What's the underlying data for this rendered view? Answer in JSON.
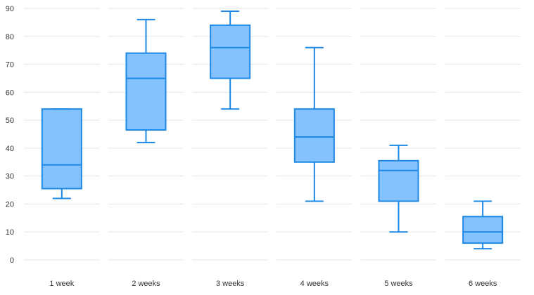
{
  "chart_data": {
    "type": "boxplot",
    "title": "",
    "xlabel": "",
    "ylabel": "",
    "ylim": [
      0,
      90
    ],
    "y_ticks": [
      0,
      10,
      20,
      30,
      40,
      50,
      60,
      70,
      80,
      90
    ],
    "grid": true,
    "categories": [
      "1 week",
      "2 weeks",
      "3 weeks",
      "4 weeks",
      "5 weeks",
      "6 weeks"
    ],
    "boxes": [
      {
        "category": "1 week",
        "min": 22,
        "q1": 25.5,
        "median": 34,
        "q3": 54,
        "max": 54
      },
      {
        "category": "2 weeks",
        "min": 42,
        "q1": 46.5,
        "median": 65,
        "q3": 74,
        "max": 86
      },
      {
        "category": "3 weeks",
        "min": 54,
        "q1": 65,
        "median": 76,
        "q3": 84,
        "max": 89
      },
      {
        "category": "4 weeks",
        "min": 21,
        "q1": 35,
        "median": 44,
        "q3": 54,
        "max": 76
      },
      {
        "category": "5 weeks",
        "min": 10,
        "q1": 21,
        "median": 32,
        "q3": 35.5,
        "max": 41
      },
      {
        "category": "6 weeks",
        "min": 4,
        "q1": 6,
        "median": 10,
        "q3": 15.5,
        "max": 21
      }
    ],
    "colors": {
      "box_fill": "#84c2ff",
      "box_stroke": "#1e88e5",
      "grid": "#e6e6e6",
      "text": "#333333"
    }
  }
}
